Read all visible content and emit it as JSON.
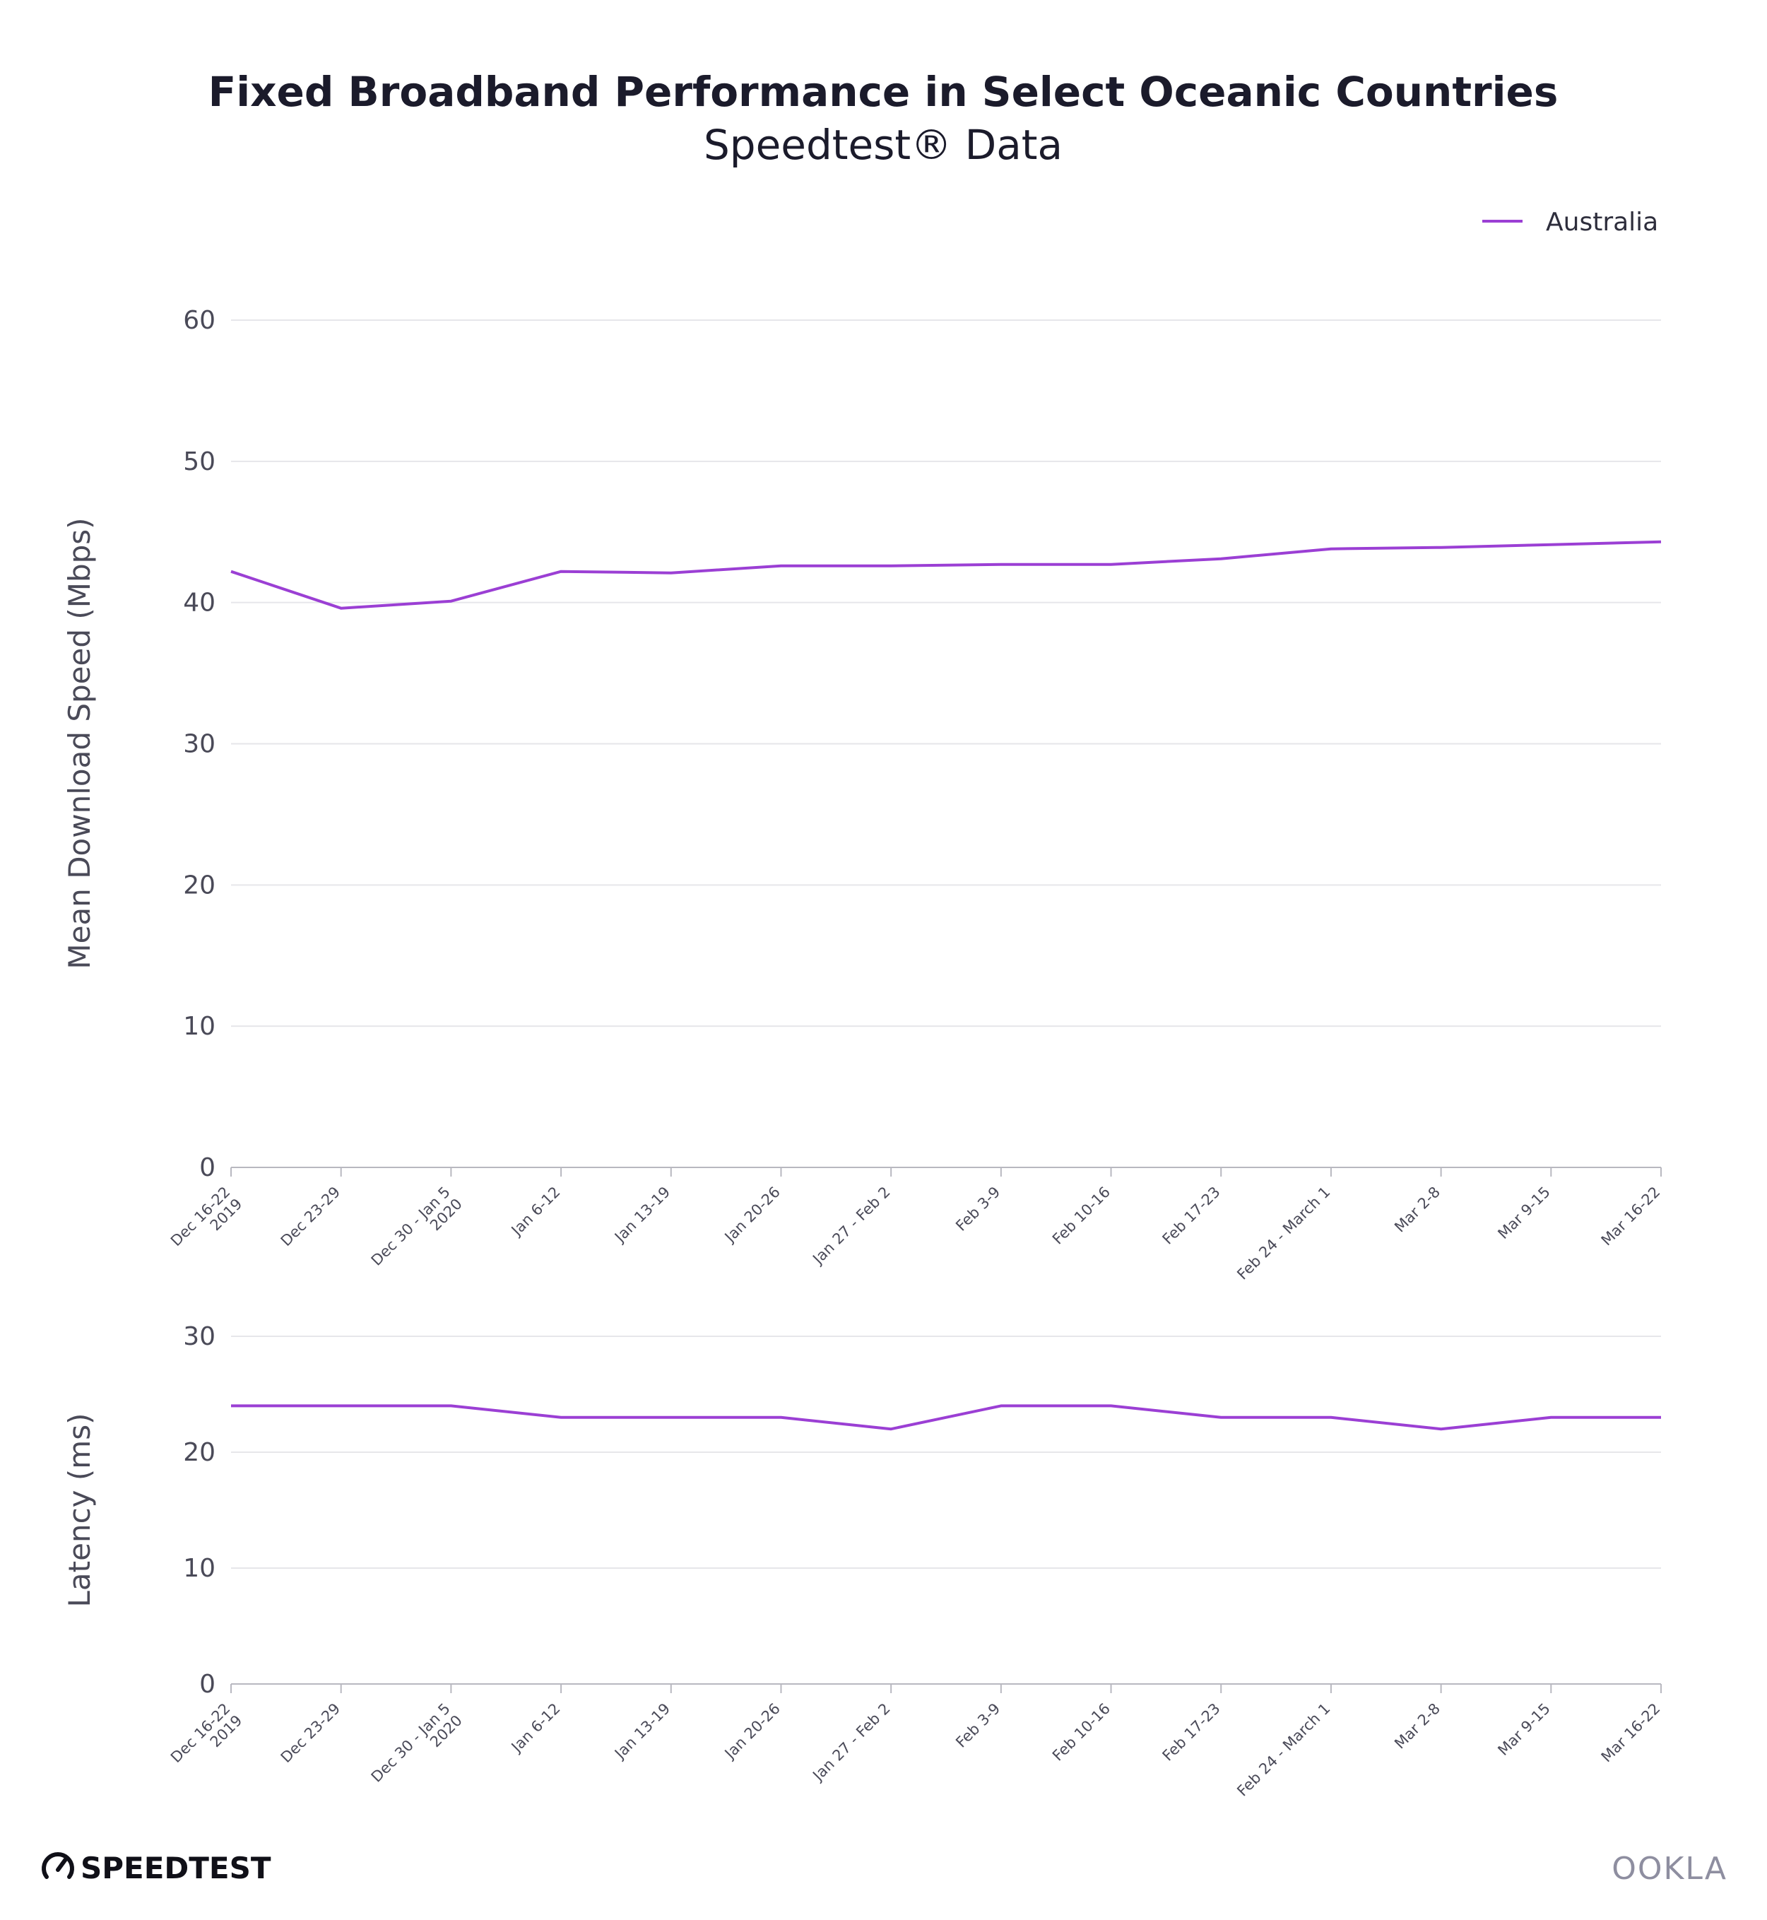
{
  "header": {
    "title": "Fixed Broadband Performance in Select Oceanic Countries",
    "subtitle": "Speedtest® Data"
  },
  "legend": {
    "label": "Australia",
    "color": "#9b3fd4"
  },
  "chart_data": [
    {
      "type": "line",
      "ylabel": "Mean Download Speed (Mbps)",
      "ylim": [
        0,
        60
      ],
      "yticks": [
        0,
        10,
        20,
        30,
        40,
        50,
        60
      ],
      "categories": [
        [
          "Dec 16-22",
          "2019"
        ],
        [
          "Dec 23-29"
        ],
        [
          "Dec 30 - Jan 5",
          "2020"
        ],
        [
          "Jan 6-12"
        ],
        [
          "Jan 13-19"
        ],
        [
          "Jan 20-26"
        ],
        [
          "Jan 27 - Feb 2"
        ],
        [
          "Feb 3-9"
        ],
        [
          "Feb 10-16"
        ],
        [
          "Feb 17-23"
        ],
        [
          "Feb 24 - March 1"
        ],
        [
          "Mar 2-8"
        ],
        [
          "Mar 9-15"
        ],
        [
          "Mar 16-22"
        ]
      ],
      "series": [
        {
          "name": "Australia",
          "color": "#9b3fd4",
          "values": [
            42.2,
            39.6,
            40.1,
            42.2,
            42.1,
            42.6,
            42.6,
            42.7,
            42.7,
            43.1,
            43.8,
            43.9,
            44.1,
            44.3
          ]
        }
      ],
      "grid": true
    },
    {
      "type": "line",
      "ylabel": "Latency (ms)",
      "ylim": [
        0,
        30
      ],
      "yticks": [
        0,
        10,
        20,
        30
      ],
      "categories": [
        [
          "Dec 16-22",
          "2019"
        ],
        [
          "Dec 23-29"
        ],
        [
          "Dec 30 - Jan 5",
          "2020"
        ],
        [
          "Jan 6-12"
        ],
        [
          "Jan 13-19"
        ],
        [
          "Jan 20-26"
        ],
        [
          "Jan 27 - Feb 2"
        ],
        [
          "Feb 3-9"
        ],
        [
          "Feb 10-16"
        ],
        [
          "Feb 17-23"
        ],
        [
          "Feb 24 - March 1"
        ],
        [
          "Mar 2-8"
        ],
        [
          "Mar 9-15"
        ],
        [
          "Mar 16-22"
        ]
      ],
      "series": [
        {
          "name": "Australia",
          "color": "#9b3fd4",
          "values": [
            24,
            24,
            24,
            23,
            23,
            23,
            22,
            24,
            24,
            23,
            23,
            22,
            23,
            23
          ]
        }
      ],
      "grid": true
    }
  ],
  "footer": {
    "speedtest_logo": "SPEEDTEST",
    "ookla_logo": "OOKLA"
  }
}
